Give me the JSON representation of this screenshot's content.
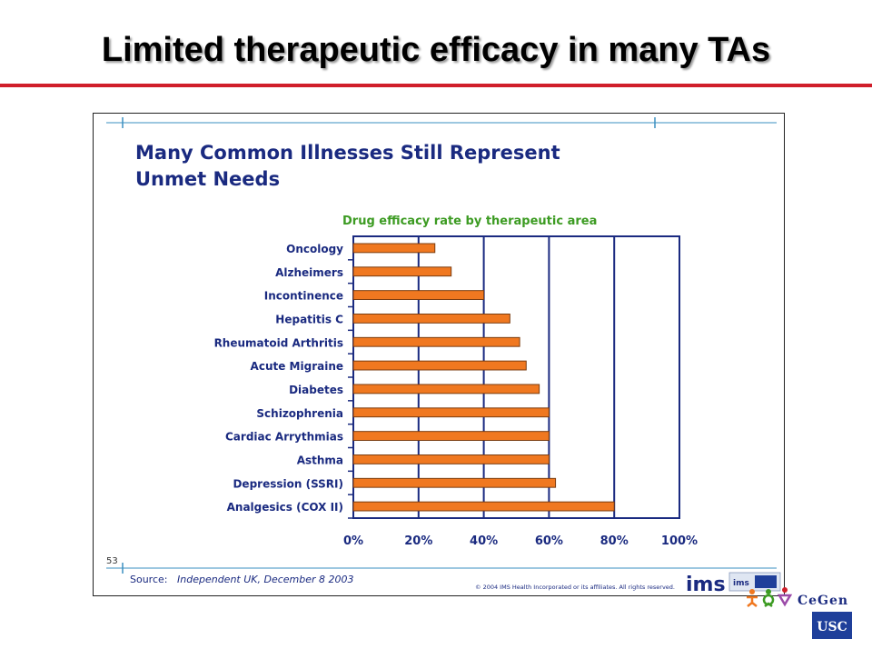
{
  "slide": {
    "title": "Limited therapeutic efficacy in many TAs"
  },
  "figure": {
    "heading_line1": "Many Common Illnesses Still Represent",
    "heading_line2": "Unmet Needs",
    "page_number": "53",
    "source_label": "Source:",
    "source_text": "Independent UK, December 8 2003",
    "copyright": "© 2004 IMS Health Incorporated or its affiliates. All rights reserved.",
    "ims_logo_text": "ims",
    "ims_small_logo_text": "ims"
  },
  "logos": {
    "cegen_text": "CeGen",
    "usc_text": "USC"
  },
  "colors": {
    "bar": "#f07820",
    "heading": "#1a2a80",
    "subtitle": "#3c9b22",
    "axis": "#1a2a80",
    "title_rule": "#d01e2a"
  },
  "chart_data": {
    "type": "bar",
    "orientation": "horizontal",
    "title": "Drug efficacy rate by therapeutic area",
    "categories": [
      "Oncology",
      "Alzheimers",
      "Incontinence",
      "Hepatitis C",
      "Rheumatoid Arthritis",
      "Acute Migraine",
      "Diabetes",
      "Schizophrenia",
      "Cardiac Arrythmias",
      "Asthma",
      "Depression (SSRI)",
      "Analgesics (COX II)"
    ],
    "values": [
      25,
      30,
      40,
      48,
      51,
      53,
      57,
      60,
      60,
      60,
      62,
      80
    ],
    "xlim": [
      0,
      100
    ],
    "xticks": [
      "0%",
      "20%",
      "40%",
      "60%",
      "80%",
      "100%"
    ],
    "grid": "vertical",
    "legend": "none"
  }
}
